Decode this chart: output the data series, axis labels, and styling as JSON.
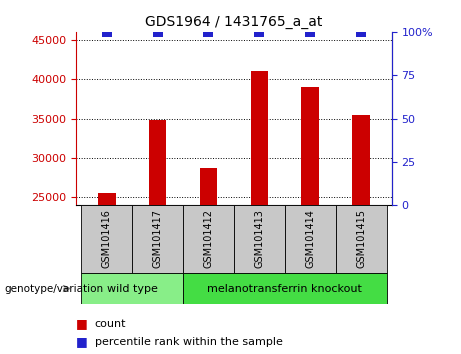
{
  "title": "GDS1964 / 1431765_a_at",
  "samples": [
    "GSM101416",
    "GSM101417",
    "GSM101412",
    "GSM101413",
    "GSM101414",
    "GSM101415"
  ],
  "counts": [
    25600,
    34800,
    28700,
    41000,
    39000,
    35500
  ],
  "percentile_ranks": [
    100,
    100,
    100,
    100,
    100,
    100
  ],
  "ylim_left": [
    24000,
    46000
  ],
  "ylim_right": [
    0,
    100
  ],
  "yticks_left": [
    25000,
    30000,
    35000,
    40000,
    45000
  ],
  "yticks_right": [
    0,
    25,
    50,
    75,
    100
  ],
  "bar_color": "#cc0000",
  "dot_color": "#2222cc",
  "grid_color": "#000000",
  "label_bg_color": "#c8c8c8",
  "group1_color": "#88ee88",
  "group2_color": "#44dd44",
  "group1_label": "wild type",
  "group2_label": "melanotransferrin knockout",
  "group1_samples": [
    0,
    1
  ],
  "group2_samples": [
    2,
    3,
    4,
    5
  ],
  "genotype_label": "genotype/variation",
  "legend_count": "count",
  "legend_percentile": "percentile rank within the sample",
  "bar_width": 0.35,
  "dot_size": 45,
  "left_tick_color": "#cc0000",
  "right_tick_color": "#2222cc",
  "right_tick_label_100": "100%"
}
